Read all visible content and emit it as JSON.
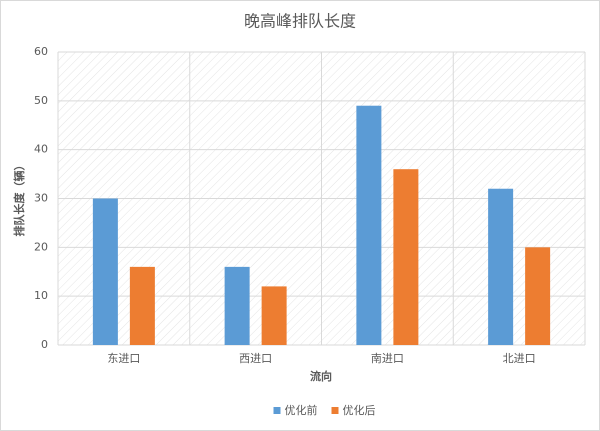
{
  "chart_data": {
    "type": "bar",
    "title": "晚高峰排队长度",
    "y_label": "排队长度（辆）",
    "x_label": "流向",
    "categories": [
      "东进口",
      "西进口",
      "南进口",
      "北进口"
    ],
    "series": [
      {
        "name": "优化前",
        "color": "#5b9bd5",
        "values": [
          30,
          16,
          49,
          32
        ]
      },
      {
        "name": "优化后",
        "color": "#ed7d31",
        "values": [
          16,
          12,
          36,
          20
        ]
      }
    ],
    "ylim": [
      0,
      60
    ],
    "yticks": [
      0,
      10,
      20,
      30,
      40,
      50,
      60
    ],
    "grid": true,
    "legend": "bottom"
  }
}
